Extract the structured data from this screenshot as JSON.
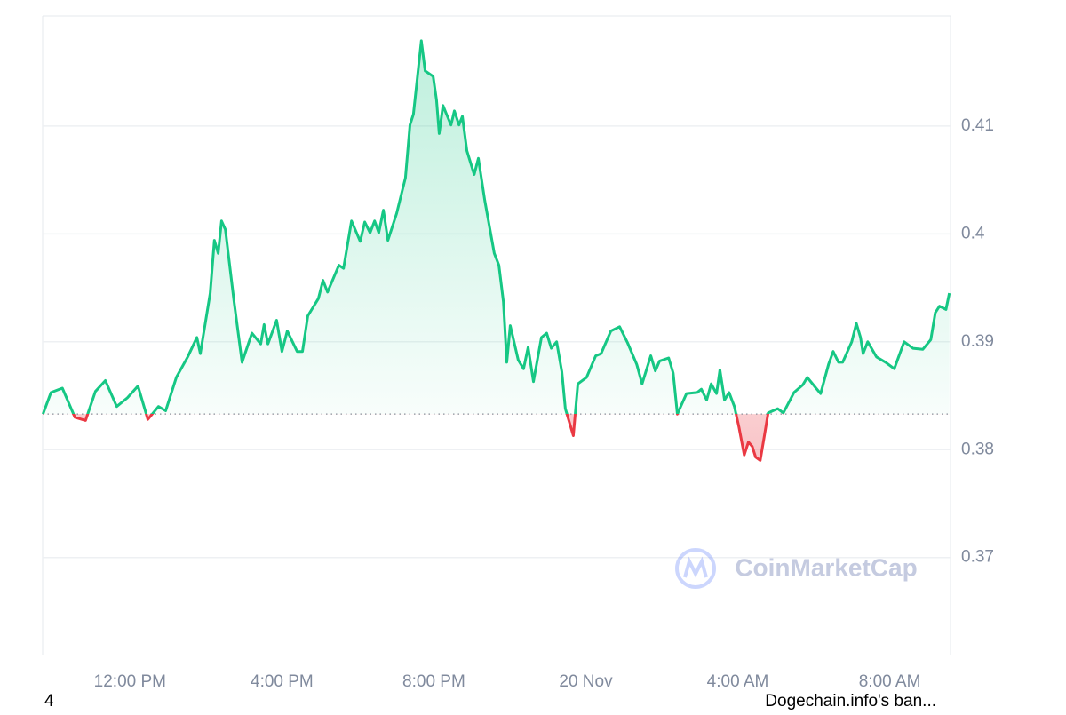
{
  "chart_data": {
    "type": "line",
    "x": [
      9.71,
      9.92,
      10.22,
      10.55,
      10.83,
      11.09,
      11.35,
      11.65,
      11.93,
      12.21,
      12.47,
      12.75,
      12.94,
      13.22,
      13.52,
      13.76,
      13.85,
      14.11,
      14.22,
      14.32,
      14.41,
      14.51,
      14.74,
      14.95,
      15.21,
      15.44,
      15.53,
      15.63,
      15.86,
      16.0,
      16.14,
      16.4,
      16.54,
      16.68,
      16.96,
      17.08,
      17.2,
      17.5,
      17.62,
      17.83,
      18.06,
      18.18,
      18.32,
      18.44,
      18.55,
      18.67,
      18.79,
      19.02,
      19.25,
      19.37,
      19.46,
      19.67,
      19.77,
      19.98,
      20.07,
      20.14,
      20.24,
      20.33,
      20.45,
      20.54,
      20.66,
      20.75,
      20.87,
      21.06,
      21.17,
      21.34,
      21.59,
      21.71,
      21.83,
      21.92,
      22.01,
      22.22,
      22.36,
      22.48,
      22.62,
      22.83,
      22.97,
      23.09,
      23.23,
      23.37,
      23.46,
      23.67,
      23.79,
      24.02,
      24.26,
      24.4,
      24.66,
      24.89,
      25.1,
      25.34,
      25.48,
      25.71,
      25.83,
      25.94,
      26.18,
      26.3,
      26.41,
      26.65,
      26.93,
      27.04,
      27.18,
      27.3,
      27.44,
      27.53,
      27.65,
      27.77,
      27.91,
      28.03,
      28.17,
      28.28,
      28.38,
      28.47,
      28.59,
      28.7,
      28.8,
      29.05,
      29.2,
      29.48,
      29.71,
      29.83,
      30.06,
      30.18,
      30.39,
      30.51,
      30.65,
      30.76,
      31.0,
      31.12,
      31.23,
      31.3,
      31.42,
      31.65,
      31.89,
      32.12,
      32.38,
      32.61,
      32.87,
      33.08,
      33.2,
      33.31,
      33.48,
      33.57
    ],
    "values": [
      0.3833,
      0.3853,
      0.3857,
      0.383,
      0.3827,
      0.3854,
      0.3864,
      0.384,
      0.3848,
      0.3859,
      0.3828,
      0.384,
      0.3836,
      0.3867,
      0.3886,
      0.3904,
      0.3889,
      0.3945,
      0.3994,
      0.3982,
      0.4012,
      0.4004,
      0.3937,
      0.3881,
      0.3908,
      0.3898,
      0.3916,
      0.3898,
      0.392,
      0.3891,
      0.391,
      0.3891,
      0.3891,
      0.3924,
      0.394,
      0.3957,
      0.3946,
      0.3971,
      0.3968,
      0.4012,
      0.3993,
      0.4011,
      0.4001,
      0.4012,
      0.4001,
      0.4022,
      0.3994,
      0.4019,
      0.4052,
      0.4101,
      0.4111,
      0.4179,
      0.4151,
      0.4146,
      0.4124,
      0.4093,
      0.4119,
      0.4111,
      0.4101,
      0.4114,
      0.4101,
      0.4109,
      0.4077,
      0.4055,
      0.407,
      0.4031,
      0.3982,
      0.3971,
      0.3937,
      0.3881,
      0.3915,
      0.3883,
      0.3875,
      0.3895,
      0.3863,
      0.3904,
      0.3908,
      0.3894,
      0.39,
      0.3872,
      0.3838,
      0.3813,
      0.3861,
      0.3867,
      0.3887,
      0.3889,
      0.391,
      0.3914,
      0.3899,
      0.3879,
      0.3861,
      0.3887,
      0.3873,
      0.3882,
      0.3885,
      0.3871,
      0.3833,
      0.3852,
      0.3853,
      0.3856,
      0.3846,
      0.3861,
      0.3852,
      0.3874,
      0.3846,
      0.3853,
      0.384,
      0.3821,
      0.3795,
      0.3807,
      0.3803,
      0.3793,
      0.379,
      0.3813,
      0.3834,
      0.3838,
      0.3834,
      0.3853,
      0.386,
      0.3867,
      0.3857,
      0.3852,
      0.3879,
      0.3891,
      0.3881,
      0.3881,
      0.39,
      0.3917,
      0.3904,
      0.3889,
      0.39,
      0.3886,
      0.3881,
      0.3875,
      0.39,
      0.3894,
      0.3893,
      0.3902,
      0.3927,
      0.3933,
      0.393,
      0.3945
    ],
    "baseline": 0.3833,
    "colors": {
      "up": "#16c784",
      "down": "#ea3943"
    },
    "xlim": [
      9.7,
      33.6
    ],
    "xticks": [
      {
        "value": 12,
        "label": "12:00 PM"
      },
      {
        "value": 16,
        "label": "4:00 PM"
      },
      {
        "value": 20,
        "label": "8:00 PM"
      },
      {
        "value": 24,
        "label": "20 Nov"
      },
      {
        "value": 28,
        "label": "4:00 AM"
      },
      {
        "value": 32,
        "label": "8:00 AM"
      }
    ],
    "ylim": [
      0.361,
      0.4202
    ],
    "yticks": [
      0.37,
      0.38,
      0.39,
      0.4,
      0.41
    ],
    "yaxis_side": "right",
    "grid": true,
    "watermark": "CoinMarketCap"
  },
  "footer": {
    "left": "4",
    "right": "Dogechain.info's ban..."
  }
}
